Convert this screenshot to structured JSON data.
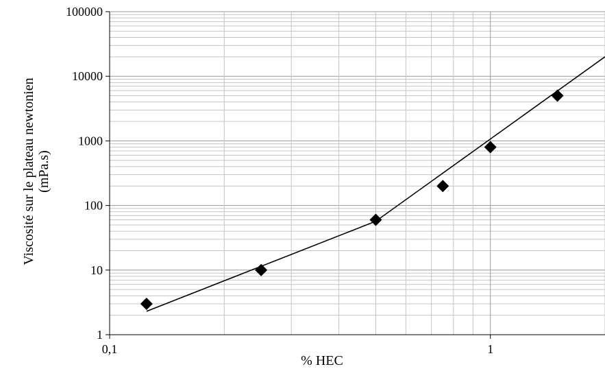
{
  "chart_data": {
    "type": "scatter",
    "title": "",
    "xlabel": "% HEC",
    "ylabel_lines": [
      "Viscosité  sur le  plateau newtonien",
      "(mPa.s)"
    ],
    "x_scale": "log",
    "y_scale": "log",
    "xlim": [
      0.1,
      2.0
    ],
    "ylim": [
      1,
      100000
    ],
    "x_tick_values": [
      0.1,
      1
    ],
    "x_tick_labels": [
      "0,1",
      "1"
    ],
    "y_tick_values": [
      1,
      10,
      100,
      1000,
      10000,
      100000
    ],
    "y_tick_labels": [
      "1",
      "10",
      "100",
      "1000",
      "10000",
      "100000"
    ],
    "grid": true,
    "legend": "none",
    "series": [
      {
        "kind": "points",
        "marker": "diamond",
        "x": [
          0.125,
          0.25,
          0.5,
          0.75,
          1.0,
          1.5
        ],
        "y": [
          3,
          10,
          60,
          200,
          800,
          5000
        ]
      },
      {
        "kind": "fit-line",
        "x": [
          0.125,
          0.5,
          2.0
        ],
        "y": [
          2.3,
          57,
          20000
        ]
      }
    ]
  }
}
